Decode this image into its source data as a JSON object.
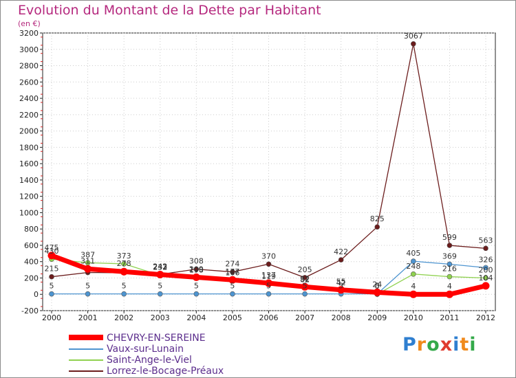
{
  "title": "Evolution du Montant de la Dette par Habitant",
  "unit": "(en €)",
  "logo": "Proxiti",
  "chart_data": {
    "type": "line",
    "x": [
      "2000",
      "2001",
      "2002",
      "2003",
      "2004",
      "2005",
      "2006",
      "2007",
      "2008",
      "2009",
      "2010",
      "2011",
      "2012"
    ],
    "y_ticks": [
      -200,
      0,
      200,
      400,
      600,
      800,
      1000,
      1200,
      1400,
      1600,
      1800,
      2000,
      2200,
      2400,
      2600,
      2800,
      3000,
      3200
    ],
    "ylim": [
      -200,
      3200
    ],
    "series": [
      {
        "name": "CHEVRY-EN-SEREINE",
        "color": "#ff0000",
        "values": [
          475,
          311,
          278,
          242,
          209,
          177,
          137,
          92,
          55,
          24,
          0,
          0,
          104
        ],
        "labels": [
          "475",
          "311",
          "278",
          "242",
          "209",
          "177",
          "137",
          "92",
          "55",
          "24",
          "",
          "",
          "104"
        ]
      },
      {
        "name": "Vaux-sur-Lunain",
        "color": "#4d94d0",
        "values": [
          5,
          5,
          5,
          5,
          5,
          5,
          5,
          5,
          5,
          5,
          405,
          369,
          326
        ],
        "labels": [
          "5",
          "5",
          "5",
          "5",
          "5",
          "5",
          "5",
          "5",
          "5",
          "5",
          "405",
          "369",
          "326"
        ]
      },
      {
        "name": "Saint-Ange-le-Viel",
        "color": "#8fd14f",
        "values": [
          430,
          387,
          373,
          232,
          198,
          166,
          119,
          82,
          42,
          0,
          248,
          216,
          200
        ],
        "labels": [
          "430",
          "387",
          "373",
          "232",
          "198",
          "166",
          "119",
          "82",
          "42",
          "0",
          "248",
          "216",
          "200"
        ]
      },
      {
        "name": "Lorrez-le-Bocage-Préaux",
        "color": "#6b1c1c",
        "values": [
          215,
          267,
          263,
          243,
          308,
          274,
          370,
          205,
          422,
          825,
          3067,
          599,
          563
        ],
        "labels": [
          "215",
          "",
          "",
          "243",
          "308",
          "274",
          "370",
          "205",
          "422",
          "825",
          "3067",
          "599",
          "563"
        ]
      }
    ],
    "extra_labels": [
      "4",
      "4"
    ]
  }
}
